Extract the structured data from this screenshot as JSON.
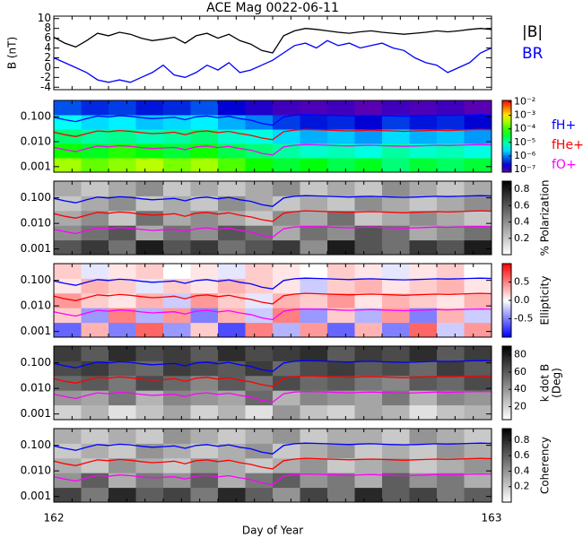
{
  "chart_data": [
    {
      "type": "line",
      "title": "ACE Mag 0022-06-11",
      "ylabel": "B (nT)",
      "x": [
        162.0,
        162.025,
        162.05,
        162.075,
        162.1,
        162.125,
        162.15,
        162.175,
        162.2,
        162.225,
        162.25,
        162.275,
        162.3,
        162.325,
        162.35,
        162.375,
        162.4,
        162.425,
        162.45,
        162.475,
        162.5,
        162.525,
        162.55,
        162.575,
        162.6,
        162.625,
        162.65,
        162.675,
        162.7,
        162.725,
        162.75,
        162.775,
        162.8,
        162.825,
        162.85,
        162.875,
        162.9,
        162.925,
        162.95,
        162.975,
        163.0
      ],
      "xlim": [
        162,
        163
      ],
      "ylim": [
        -4.5,
        10.5
      ],
      "yticks": [
        -4,
        -2,
        0,
        2,
        4,
        6,
        8,
        10
      ],
      "series": [
        {
          "name": "|B|",
          "color": "#000000",
          "values": [
            6.2,
            5.0,
            4.2,
            5.5,
            7.0,
            6.5,
            7.2,
            6.8,
            6.0,
            5.5,
            5.8,
            6.2,
            5.0,
            6.5,
            7.0,
            6.0,
            6.8,
            5.5,
            4.8,
            3.5,
            3.0,
            6.5,
            7.5,
            8.0,
            7.8,
            7.5,
            7.2,
            7.0,
            7.3,
            7.5,
            7.2,
            7.0,
            6.8,
            7.0,
            7.2,
            7.5,
            7.3,
            7.5,
            7.8,
            8.0,
            7.8
          ]
        },
        {
          "name": "BR",
          "color": "#0000ff",
          "values": [
            2.0,
            1.0,
            0.0,
            -1.0,
            -2.5,
            -3.0,
            -2.5,
            -3.0,
            -2.0,
            -1.0,
            0.5,
            -1.5,
            -2.0,
            -1.0,
            0.5,
            -0.5,
            1.0,
            -1.0,
            -0.5,
            0.5,
            1.5,
            3.0,
            4.5,
            5.0,
            4.0,
            5.5,
            4.5,
            5.0,
            4.0,
            4.5,
            5.0,
            4.0,
            3.5,
            2.0,
            1.0,
            0.5,
            -1.0,
            0.0,
            1.0,
            3.0,
            4.0
          ]
        }
      ]
    },
    {
      "type": "heatmap",
      "xlim": [
        162,
        163
      ],
      "ylim": [
        0.0006,
        0.45
      ],
      "log_y": true,
      "yticks": [
        0.001,
        {
          "value": 0.01,
          "label": "0.010"
        },
        {
          "value": 0.1,
          "label": "0.100"
        }
      ],
      "colormap": "rainbow",
      "zlim": [
        -7.2,
        -1.9
      ],
      "zticks": [
        {
          "value": -2,
          "label": "10⁻²"
        },
        {
          "value": -3,
          "label": "10⁻³"
        },
        {
          "value": -4,
          "label": "10⁻⁴"
        },
        {
          "value": -5,
          "label": "10⁻⁵"
        },
        {
          "value": -6,
          "label": "10⁻⁶"
        },
        {
          "value": -7,
          "label": "10⁻⁷"
        }
      ],
      "z": [
        [
          -3.5,
          -3.8,
          -3.6,
          -3.4,
          -3.7,
          -3.5,
          -3.9,
          -4.2,
          -4.5,
          -4.3,
          -4.6,
          -4.4,
          -4.8,
          -4.5,
          -4.7,
          -4.5
        ],
        [
          -4.2,
          -4.4,
          -4.1,
          -4.3,
          -4.5,
          -4.2,
          -4.6,
          -4.8,
          -5.0,
          -5.2,
          -5.1,
          -5.3,
          -5.0,
          -5.2,
          -5.1,
          -5.3
        ],
        [
          -4.8,
          -5.0,
          -4.9,
          -5.1,
          -5.0,
          -4.8,
          -5.2,
          -5.3,
          -5.6,
          -5.8,
          -5.7,
          -5.9,
          -5.6,
          -5.8,
          -5.7,
          -5.9
        ],
        [
          -5.4,
          -5.6,
          -5.5,
          -5.7,
          -5.6,
          -5.5,
          -5.8,
          -6.0,
          -6.3,
          -6.5,
          -6.4,
          -6.6,
          -6.3,
          -6.5,
          -6.4,
          -6.6
        ],
        [
          -6.2,
          -6.4,
          -6.3,
          -6.5,
          -6.4,
          -6.2,
          -6.6,
          -6.8,
          -7.0,
          -7.1,
          -7.0,
          -7.2,
          -7.0,
          -7.1,
          -7.0,
          -7.2
        ]
      ],
      "series": [
        {
          "name": "fH+",
          "color": "#0000ff",
          "values": [
            0.095,
            0.076,
            0.064,
            0.084,
            0.107,
            0.099,
            0.11,
            0.104,
            0.092,
            0.084,
            0.089,
            0.095,
            0.076,
            0.099,
            0.107,
            0.092,
            0.104,
            0.084,
            0.073,
            0.054,
            0.046,
            0.099,
            0.115,
            0.122,
            0.119,
            0.115,
            0.11,
            0.107,
            0.112,
            0.115,
            0.11,
            0.107,
            0.104,
            0.107,
            0.11,
            0.115,
            0.112,
            0.115,
            0.119,
            0.122,
            0.119
          ]
        },
        {
          "name": "fHe+",
          "color": "#ff0000",
          "values": [
            0.024,
            0.019,
            0.016,
            0.021,
            0.027,
            0.025,
            0.028,
            0.026,
            0.023,
            0.021,
            0.022,
            0.024,
            0.019,
            0.025,
            0.027,
            0.023,
            0.026,
            0.021,
            0.018,
            0.014,
            0.012,
            0.025,
            0.029,
            0.031,
            0.03,
            0.029,
            0.028,
            0.027,
            0.028,
            0.029,
            0.028,
            0.027,
            0.026,
            0.027,
            0.028,
            0.029,
            0.028,
            0.029,
            0.03,
            0.031,
            0.03
          ]
        },
        {
          "name": "fO+",
          "color": "#ff00ff",
          "values": [
            0.0059,
            0.0048,
            0.004,
            0.0053,
            0.0067,
            0.0062,
            0.0069,
            0.0065,
            0.0058,
            0.0053,
            0.0056,
            0.0059,
            0.0048,
            0.0062,
            0.0067,
            0.0058,
            0.0065,
            0.0053,
            0.0046,
            0.0034,
            0.0029,
            0.0062,
            0.0072,
            0.0076,
            0.0074,
            0.0072,
            0.0069,
            0.0067,
            0.007,
            0.0072,
            0.0069,
            0.0067,
            0.0065,
            0.0067,
            0.0069,
            0.0072,
            0.007,
            0.0072,
            0.0074,
            0.0076,
            0.0074
          ]
        }
      ]
    },
    {
      "type": "heatmap",
      "xlim": [
        162,
        163
      ],
      "ylim": [
        0.0006,
        0.45
      ],
      "log_y": true,
      "yticks": [
        0.001,
        {
          "value": 0.01,
          "label": "0.010"
        },
        {
          "value": 0.1,
          "label": "0.100"
        }
      ],
      "colormap": "gray",
      "zlim": [
        0,
        0.9
      ],
      "zticks": [
        0.2,
        0.4,
        0.6,
        0.8
      ],
      "clabel": "% Polarization",
      "z": [
        [
          0.6,
          0.7,
          0.5,
          0.8,
          0.6,
          0.7,
          0.5,
          0.6,
          0.7,
          0.4,
          0.8,
          0.6,
          0.5,
          0.7,
          0.6,
          0.8
        ],
        [
          0.4,
          0.5,
          0.6,
          0.3,
          0.5,
          0.4,
          0.6,
          0.5,
          0.3,
          0.5,
          0.4,
          0.6,
          0.5,
          0.3,
          0.4,
          0.5
        ],
        [
          0.3,
          0.4,
          0.2,
          0.5,
          0.3,
          0.4,
          0.3,
          0.2,
          0.4,
          0.3,
          0.5,
          0.2,
          0.3,
          0.4,
          0.3,
          0.2
        ],
        [
          0.2,
          0.3,
          0.4,
          0.2,
          0.3,
          0.2,
          0.4,
          0.3,
          0.2,
          0.3,
          0.2,
          0.4,
          0.3,
          0.2,
          0.3,
          0.4
        ],
        [
          0.3,
          0.2,
          0.3,
          0.4,
          0.2,
          0.3,
          0.2,
          0.3,
          0.4,
          0.2,
          0.3,
          0.2,
          0.4,
          0.3,
          0.2,
          0.3
        ]
      ]
    },
    {
      "type": "heatmap",
      "xlim": [
        162,
        163
      ],
      "ylim": [
        0.0006,
        0.45
      ],
      "log_y": true,
      "yticks": [
        0.001,
        {
          "value": 0.01,
          "label": "0.010"
        },
        {
          "value": 0.1,
          "label": "0.100"
        }
      ],
      "colormap": "bwr",
      "zlim": [
        -1,
        1
      ],
      "zticks": [
        -0.5,
        {
          "value": 0,
          "label": "0.0"
        },
        0.5
      ],
      "clabel": "Ellipticity",
      "z": [
        [
          -0.6,
          0.3,
          -0.5,
          0.6,
          -0.4,
          0.2,
          -0.7,
          0.5,
          -0.3,
          0.4,
          -0.6,
          0.3,
          -0.5,
          0.6,
          -0.2,
          0.4
        ],
        [
          0.2,
          -0.4,
          0.5,
          -0.3,
          0.4,
          -0.5,
          0.3,
          -0.2,
          0.5,
          -0.4,
          0.2,
          -0.3,
          0.4,
          -0.5,
          0.3,
          -0.2
        ],
        [
          0.4,
          0.2,
          0.1,
          0.3,
          -0.2,
          0.4,
          0.2,
          -0.1,
          0.3,
          0.2,
          0.4,
          0.1,
          0.3,
          0.2,
          0.1,
          0.3
        ],
        [
          0.1,
          0.3,
          0.2,
          -0.1,
          0.2,
          0.1,
          0.3,
          0.2,
          0.1,
          -0.2,
          0.2,
          0.3,
          0.1,
          0.2,
          0.3,
          0.1
        ],
        [
          0.2,
          -0.1,
          0.1,
          0.2,
          0.0,
          0.1,
          -0.1,
          0.2,
          0.1,
          0.0,
          0.2,
          0.1,
          -0.1,
          0.1,
          0.2,
          0.0
        ]
      ]
    },
    {
      "type": "heatmap",
      "xlim": [
        162,
        163
      ],
      "ylim": [
        0.0006,
        0.45
      ],
      "log_y": true,
      "yticks": [
        0.001,
        {
          "value": 0.01,
          "label": "0.010"
        },
        {
          "value": 0.1,
          "label": "0.100"
        }
      ],
      "colormap": "gray",
      "zlim": [
        5,
        90
      ],
      "zticks": [
        20,
        40,
        60,
        80
      ],
      "clabel": [
        "k dot B",
        "(Deg)"
      ],
      "z": [
        [
          20,
          30,
          15,
          25,
          35,
          20,
          30,
          15,
          40,
          25,
          20,
          35,
          30,
          15,
          25,
          30
        ],
        [
          40,
          35,
          50,
          30,
          45,
          40,
          35,
          55,
          30,
          45,
          40,
          35,
          50,
          30,
          45,
          40
        ],
        [
          55,
          60,
          50,
          65,
          55,
          45,
          60,
          50,
          65,
          55,
          60,
          50,
          45,
          60,
          55,
          65
        ],
        [
          65,
          70,
          60,
          55,
          70,
          65,
          60,
          70,
          55,
          65,
          70,
          60,
          65,
          55,
          70,
          60
        ],
        [
          70,
          60,
          75,
          65,
          70,
          60,
          75,
          65,
          70,
          75,
          60,
          70,
          65,
          75,
          60,
          70
        ]
      ]
    },
    {
      "type": "heatmap",
      "xlim": [
        162,
        163
      ],
      "ylim": [
        0.0006,
        0.45
      ],
      "log_y": true,
      "yticks": [
        0.001,
        {
          "value": 0.01,
          "label": "0.010"
        },
        {
          "value": 0.1,
          "label": "0.100"
        }
      ],
      "colormap": "gray",
      "zlim": [
        0,
        0.95
      ],
      "zticks": [
        0.2,
        0.4,
        0.6,
        0.8
      ],
      "clabel": "Coherency",
      "xticks": [
        162,
        163
      ],
      "xlabel": "Day of Year",
      "z": [
        [
          0.7,
          0.5,
          0.8,
          0.6,
          0.7,
          0.5,
          0.8,
          0.6,
          0.4,
          0.7,
          0.5,
          0.8,
          0.6,
          0.7,
          0.5,
          0.6
        ],
        [
          0.4,
          0.6,
          0.3,
          0.5,
          0.4,
          0.6,
          0.3,
          0.5,
          0.6,
          0.4,
          0.5,
          0.3,
          0.6,
          0.4,
          0.5,
          0.3
        ],
        [
          0.3,
          0.2,
          0.4,
          0.3,
          0.2,
          0.4,
          0.3,
          0.2,
          0.3,
          0.4,
          0.2,
          0.3,
          0.4,
          0.2,
          0.3,
          0.4
        ],
        [
          0.2,
          0.3,
          0.2,
          0.4,
          0.3,
          0.2,
          0.3,
          0.4,
          0.2,
          0.3,
          0.4,
          0.2,
          0.3,
          0.2,
          0.4,
          0.3
        ],
        [
          0.3,
          0.2,
          0.3,
          0.2,
          0.4,
          0.3,
          0.2,
          0.3,
          0.4,
          0.2,
          0.3,
          0.3,
          0.2,
          0.4,
          0.3,
          0.2
        ]
      ]
    }
  ]
}
